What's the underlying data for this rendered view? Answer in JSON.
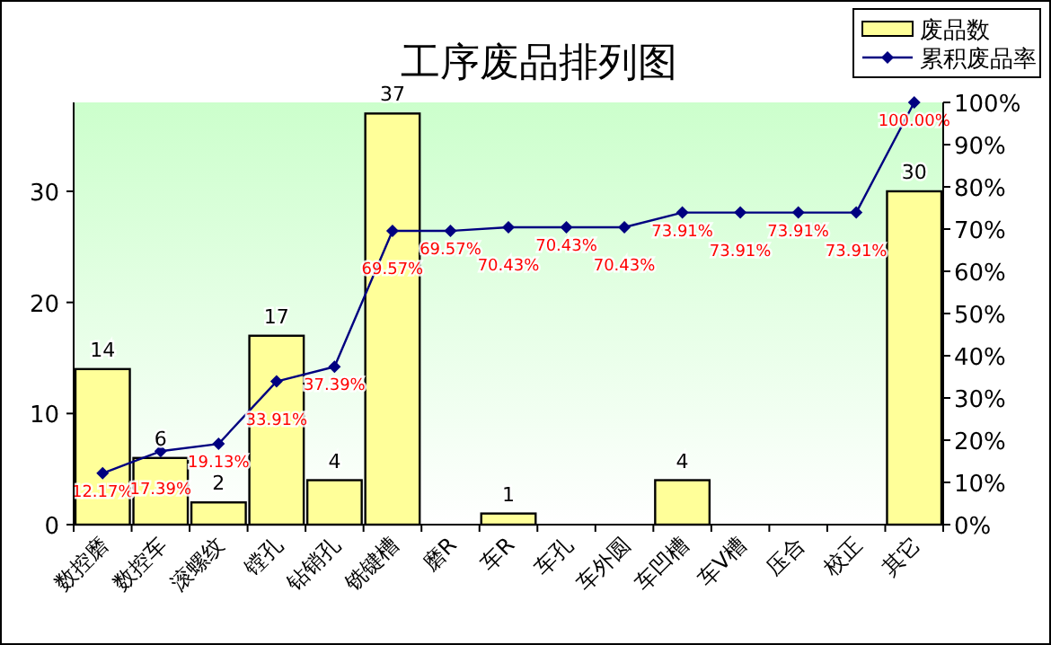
{
  "chart_data": {
    "type": "bar",
    "title": "工序废品排列图",
    "categories": [
      "数控磨",
      "数控车",
      "滚螺纹",
      "镗孔",
      "钻销孔",
      "铣键槽",
      "磨R",
      "车R",
      "车孔",
      "车外圆",
      "车凹槽",
      "车V槽",
      "压合",
      "校正",
      "其它"
    ],
    "series": [
      {
        "name": "废品数",
        "color": "#ffff99",
        "values": [
          14,
          6,
          2,
          17,
          4,
          37,
          0,
          1,
          0,
          0,
          4,
          0,
          0,
          0,
          30
        ],
        "value_labels": [
          "14",
          "6",
          "2",
          "17",
          "4",
          "37",
          null,
          "1",
          null,
          null,
          "4",
          null,
          null,
          null,
          "30"
        ]
      },
      {
        "name": "累积废品率",
        "type": "line",
        "axis": "y2",
        "color": "#000080",
        "values": [
          12.17,
          17.39,
          19.13,
          33.91,
          37.39,
          69.57,
          69.57,
          70.43,
          70.43,
          70.43,
          73.91,
          73.91,
          73.91,
          73.91,
          100.0
        ],
        "value_labels": [
          "12.17%",
          "17.39%",
          "19.13%",
          "33.91%",
          "37.39%",
          "69.57%",
          "69.57%",
          "70.43%",
          "70.43%",
          "70.43%",
          "73.91%",
          "73.91%",
          "73.91%",
          "73.91%",
          "100.00%"
        ]
      }
    ],
    "ylim": [
      0,
      38
    ],
    "yticks": [
      0,
      10,
      20,
      30
    ],
    "y2lim": [
      0,
      100
    ],
    "y2ticks": [
      {
        "value": 0,
        "label": "0%"
      },
      {
        "value": 10,
        "label": "10%"
      },
      {
        "value": 20,
        "label": "20%"
      },
      {
        "value": 30,
        "label": "30%"
      },
      {
        "value": 40,
        "label": "40%"
      },
      {
        "value": 50,
        "label": "50%"
      },
      {
        "value": 60,
        "label": "60%"
      },
      {
        "value": 70,
        "label": "70%"
      },
      {
        "value": 80,
        "label": "80%"
      },
      {
        "value": 90,
        "label": "90%"
      },
      {
        "value": 100,
        "label": "100%"
      }
    ],
    "marker": "diamond",
    "legend": "top right",
    "grid": false
  }
}
